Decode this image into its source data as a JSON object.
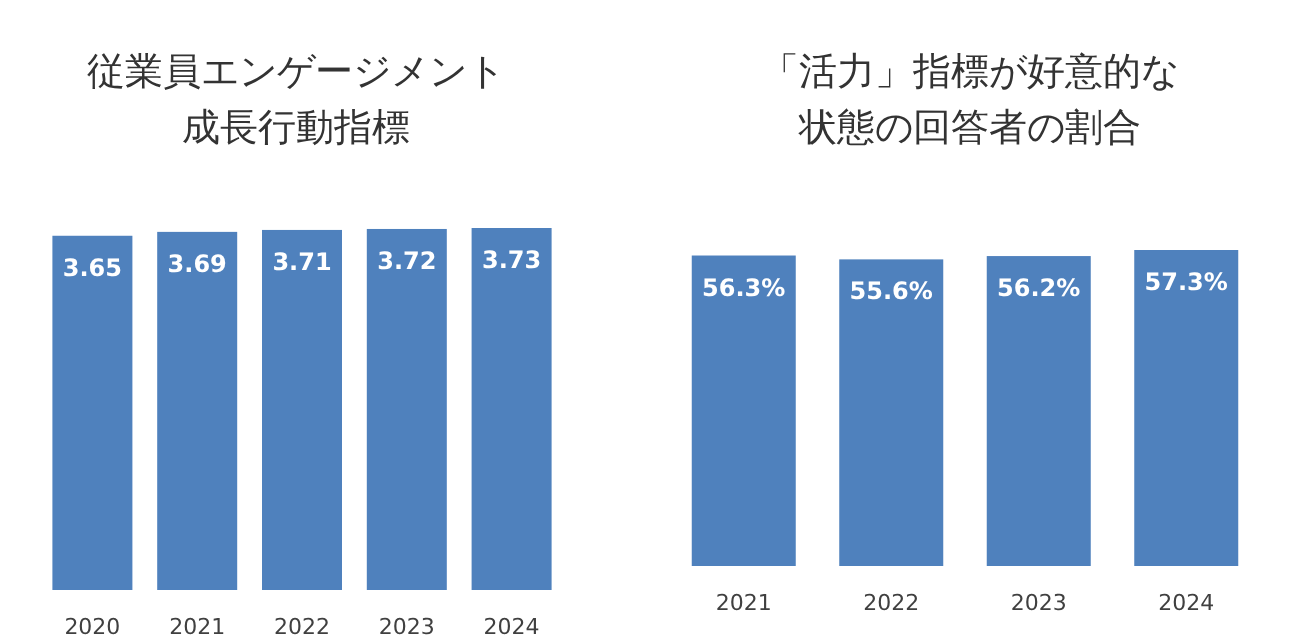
{
  "chart_data": [
    {
      "type": "bar",
      "title": "従業員エンゲージメント成長行動指標",
      "categories": [
        "2020",
        "2021",
        "2022",
        "2023",
        "2024"
      ],
      "values": [
        3.65,
        3.69,
        3.71,
        3.72,
        3.73
      ],
      "color": "#4f81bd",
      "data_labels": true
    },
    {
      "type": "bar",
      "title": "「活力」指標が好意的な状態の回答者の割合",
      "categories": [
        "2021",
        "2022",
        "2023",
        "2024"
      ],
      "values": [
        56.3,
        55.6,
        56.2,
        57.3
      ],
      "value_labels": [
        "56.3%",
        "55.6%",
        "56.2%",
        "57.3%"
      ],
      "color": "#4f81bd"
    }
  ]
}
